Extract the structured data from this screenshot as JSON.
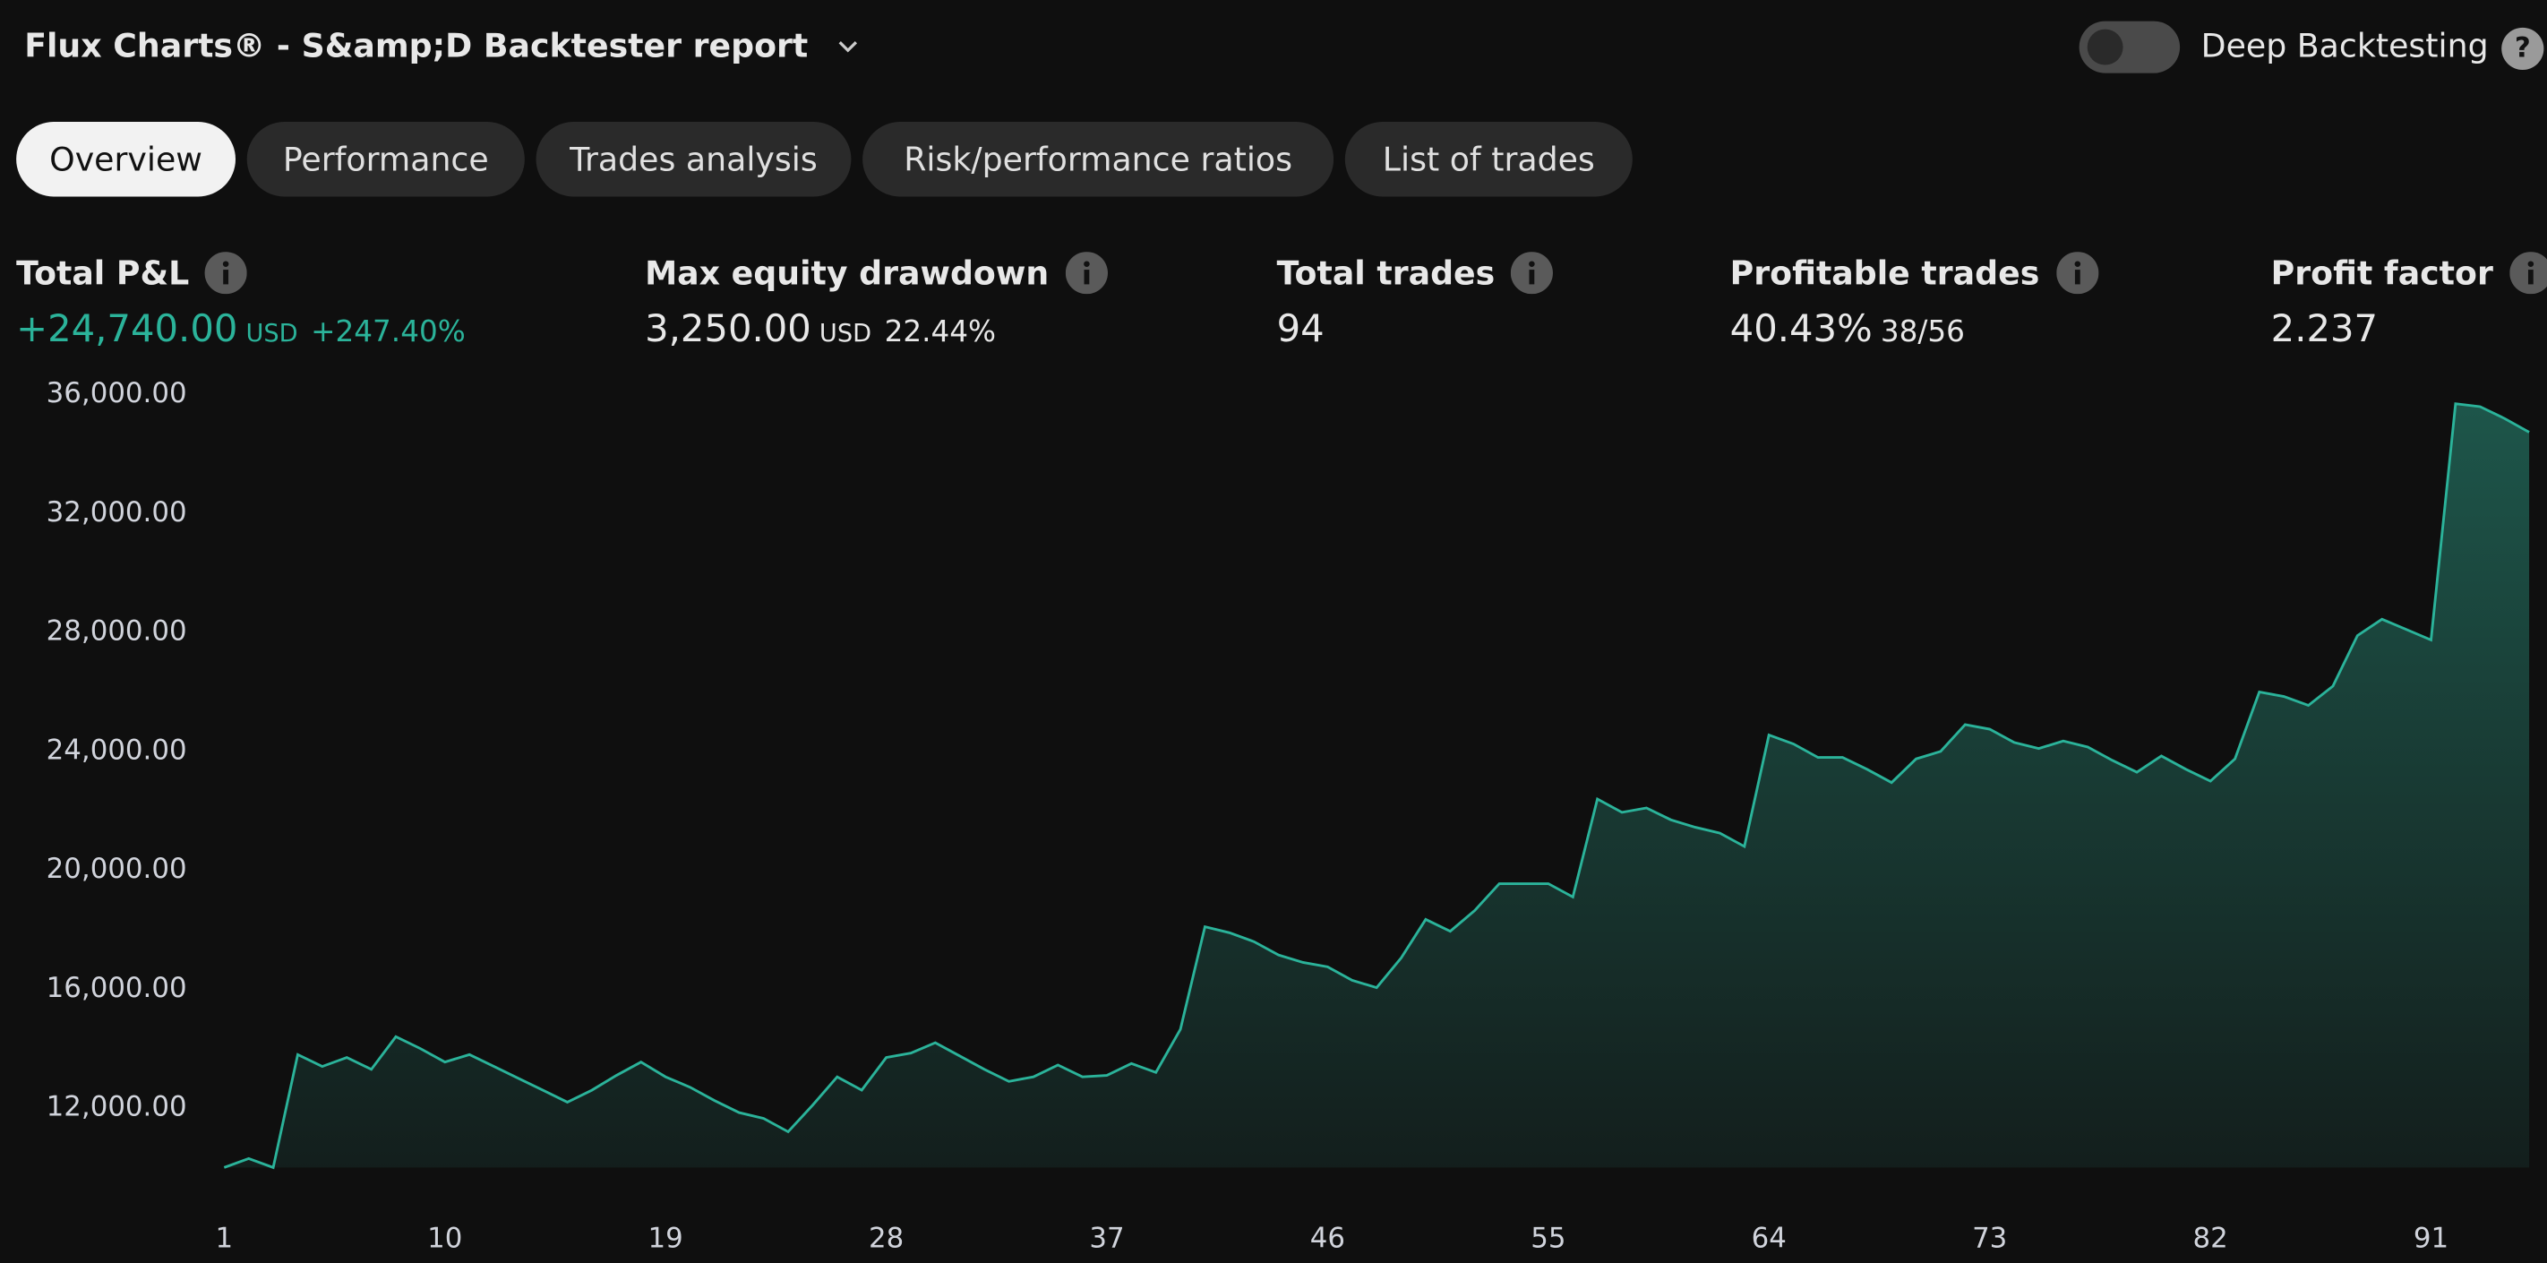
{
  "header": {
    "title": "Flux Charts® - S&amp;D Backtester report",
    "toggle_label": "Deep Backtesting",
    "help": "?"
  },
  "tabs": [
    "Overview",
    "Performance",
    "Trades analysis",
    "Risk/performance ratios",
    "List of trades"
  ],
  "metrics": [
    {
      "label": "Total P&L",
      "value": "+24,740.00",
      "unit": "USD",
      "extra": "+247.40%"
    },
    {
      "label": "Max equity drawdown",
      "value": "3,250.00",
      "unit": "USD",
      "extra": "22.44%"
    },
    {
      "label": "Total trades",
      "value": "94"
    },
    {
      "label": "Profitable trades",
      "value": "40.43%",
      "extra": "38/56"
    },
    {
      "label": "Profit factor",
      "value": "2.237"
    }
  ],
  "chart_data": {
    "type": "area",
    "color": "#2bb39a",
    "x": [
      1,
      2,
      3,
      4,
      5,
      6,
      7,
      8,
      9,
      10,
      11,
      12,
      13,
      14,
      15,
      16,
      17,
      18,
      19,
      20,
      21,
      22,
      23,
      24,
      25,
      26,
      27,
      28,
      29,
      30,
      31,
      32,
      33,
      34,
      35,
      36,
      37,
      38,
      39,
      40,
      41,
      42,
      43,
      44,
      45,
      46,
      47,
      48,
      49,
      50,
      51,
      52,
      53,
      54,
      55,
      56,
      57,
      58,
      59,
      60,
      61,
      62,
      63,
      64,
      65,
      66,
      67,
      68,
      69,
      70,
      71,
      72,
      73,
      74,
      75,
      76,
      77,
      78,
      79,
      80,
      81,
      82,
      83,
      84,
      85,
      86,
      87,
      88,
      89,
      90,
      91,
      92,
      93,
      94,
      95
    ],
    "values": [
      10000,
      10300,
      10000,
      13800,
      13400,
      13700,
      13300,
      14400,
      14000,
      13550,
      13800,
      13400,
      13000,
      12600,
      12200,
      12600,
      13100,
      13550,
      13050,
      12700,
      12250,
      11850,
      11650,
      11200,
      12100,
      13050,
      12600,
      13700,
      13850,
      14200,
      13750,
      13300,
      12900,
      13050,
      13450,
      13050,
      13100,
      13500,
      13200,
      14650,
      18100,
      17900,
      17600,
      17150,
      16900,
      16750,
      16300,
      16050,
      17050,
      18350,
      17950,
      18650,
      19550,
      19550,
      19550,
      19100,
      22400,
      21950,
      22100,
      21700,
      21450,
      21250,
      20800,
      24550,
      24250,
      23800,
      23800,
      23400,
      22950,
      23750,
      24000,
      24900,
      24750,
      24300,
      24100,
      24350,
      24150,
      23700,
      23300,
      23850,
      23400,
      23000,
      23750,
      26000,
      25850,
      25550,
      26200,
      27900,
      28450,
      28100,
      27750,
      35700,
      35600,
      35200,
      34740
    ],
    "xlim": [
      1,
      95
    ],
    "xticks": [
      1,
      10,
      19,
      28,
      37,
      46,
      55,
      64,
      73,
      82,
      91
    ],
    "ylim": [
      10000,
      36000
    ],
    "yticks": [
      {
        "value": 12000,
        "label": "12,000.00"
      },
      {
        "value": 16000,
        "label": "16,000.00"
      },
      {
        "value": 20000,
        "label": "20,000.00"
      },
      {
        "value": 24000,
        "label": "24,000.00"
      },
      {
        "value": 28000,
        "label": "28,000.00"
      },
      {
        "value": 32000,
        "label": "32,000.00"
      },
      {
        "value": 36000,
        "label": "36,000.00"
      }
    ],
    "grid": false
  }
}
